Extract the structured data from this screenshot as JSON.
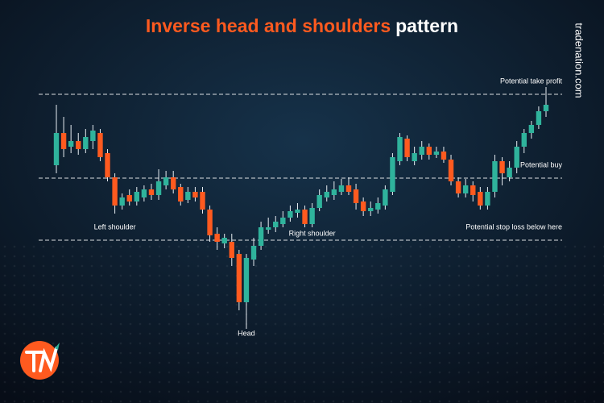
{
  "chart_data": {
    "type": "candlestick",
    "title_highlight": "Inverse head and shoulders",
    "title_rest": "pattern",
    "brand": "tradenation.com",
    "up_color": "#2fb39c",
    "down_color": "#ff5a1f",
    "ylim": [
      0,
      500
    ],
    "open": [
      295,
      335,
      318,
      325,
      315,
      325,
      335,
      310,
      280,
      245,
      258,
      250,
      255,
      265,
      258,
      270,
      280,
      268,
      252,
      262,
      262,
      240,
      210,
      198,
      200,
      185,
      125,
      178,
      195,
      215,
      218,
      222,
      230,
      236,
      240,
      222,
      242,
      255,
      258,
      262,
      270,
      265,
      250,
      238,
      240,
      245,
      262,
      300,
      328,
      300,
      308,
      318,
      308,
      312,
      302,
      275,
      260,
      270,
      262,
      245,
      262,
      300,
      280,
      292,
      318,
      335,
      345,
      362
    ],
    "high": [
      370,
      355,
      345,
      335,
      340,
      345,
      340,
      315,
      285,
      260,
      265,
      268,
      270,
      272,
      290,
      288,
      288,
      272,
      268,
      268,
      268,
      245,
      218,
      210,
      210,
      190,
      185,
      205,
      225,
      230,
      232,
      238,
      245,
      248,
      245,
      248,
      265,
      270,
      275,
      278,
      280,
      272,
      255,
      250,
      255,
      270,
      310,
      335,
      332,
      318,
      325,
      322,
      318,
      318,
      308,
      280,
      278,
      275,
      268,
      268,
      308,
      305,
      300,
      325,
      340,
      350,
      368,
      392
    ],
    "low": [
      285,
      305,
      310,
      308,
      310,
      315,
      300,
      275,
      235,
      240,
      245,
      245,
      250,
      252,
      252,
      265,
      260,
      245,
      248,
      250,
      235,
      200,
      190,
      192,
      170,
      115,
      92,
      170,
      190,
      210,
      212,
      218,
      225,
      230,
      218,
      218,
      238,
      250,
      252,
      258,
      258,
      240,
      232,
      232,
      235,
      240,
      258,
      295,
      300,
      295,
      302,
      302,
      304,
      298,
      270,
      255,
      255,
      250,
      240,
      240,
      255,
      270,
      275,
      285,
      310,
      328,
      340,
      355
    ],
    "close": [
      335,
      315,
      325,
      315,
      330,
      338,
      305,
      280,
      245,
      255,
      250,
      262,
      265,
      258,
      275,
      280,
      265,
      250,
      262,
      255,
      240,
      208,
      200,
      205,
      180,
      125,
      180,
      195,
      218,
      218,
      225,
      230,
      238,
      240,
      222,
      242,
      258,
      262,
      265,
      270,
      262,
      248,
      238,
      242,
      248,
      265,
      305,
      330,
      305,
      310,
      318,
      308,
      312,
      302,
      275,
      260,
      270,
      258,
      245,
      262,
      300,
      285,
      292,
      318,
      335,
      345,
      362,
      370
    ],
    "levels": [
      {
        "label": "Potential take profit",
        "value": 383
      },
      {
        "label": "Potential buy",
        "value": 279
      },
      {
        "label": "Potential stop loss below here",
        "value": 202
      }
    ],
    "annotations": [
      {
        "text": "Left shoulder",
        "index": 8,
        "value": 218
      },
      {
        "text": "Head",
        "index": 26,
        "value": 86
      },
      {
        "text": "Right shoulder",
        "index": 35,
        "value": 210
      }
    ]
  }
}
